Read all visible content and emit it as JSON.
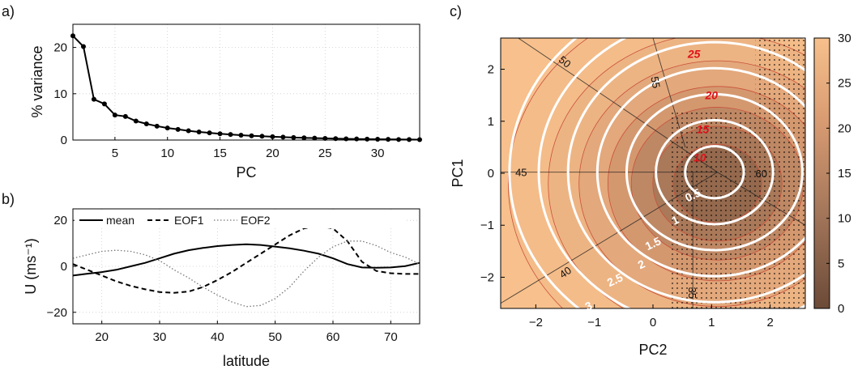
{
  "panel_labels": {
    "a": "a)",
    "b": "b)",
    "c": "c)"
  },
  "chart_data": [
    {
      "type": "line",
      "panel": "a",
      "xlabel": "PC",
      "ylabel": "% variance",
      "xlim": [
        1,
        34
      ],
      "ylim": [
        0,
        25
      ],
      "xticks": [
        5,
        10,
        15,
        20,
        25,
        30
      ],
      "yticks": [
        0,
        10,
        20
      ],
      "grid": true,
      "markers": true,
      "x": [
        1,
        2,
        3,
        4,
        5,
        6,
        7,
        8,
        9,
        10,
        11,
        12,
        13,
        14,
        15,
        16,
        17,
        18,
        19,
        20,
        21,
        22,
        23,
        24,
        25,
        26,
        27,
        28,
        29,
        30,
        31,
        32,
        33,
        34
      ],
      "values": [
        22.5,
        20.2,
        8.8,
        7.8,
        5.4,
        5.1,
        4.1,
        3.5,
        3.0,
        2.6,
        2.3,
        2.0,
        1.75,
        1.55,
        1.35,
        1.2,
        1.05,
        0.92,
        0.82,
        0.72,
        0.63,
        0.55,
        0.48,
        0.42,
        0.36,
        0.31,
        0.27,
        0.23,
        0.2,
        0.17,
        0.15,
        0.12,
        0.1,
        0.08
      ]
    },
    {
      "type": "line",
      "panel": "b",
      "xlabel": "latitude",
      "ylabel": "U (ms⁻¹)",
      "xlim": [
        15,
        75
      ],
      "ylim": [
        -25,
        25
      ],
      "xticks": [
        20,
        30,
        40,
        50,
        60,
        70
      ],
      "yticks": [
        -20,
        0,
        20
      ],
      "grid": true,
      "legend_position": "top",
      "x": [
        15,
        17.5,
        20,
        22.5,
        25,
        27.5,
        30,
        32.5,
        35,
        37.5,
        40,
        42.5,
        45,
        47.5,
        50,
        52.5,
        55,
        57.5,
        60,
        62.5,
        65,
        67.5,
        70,
        72.5,
        75
      ],
      "series": [
        {
          "name": "mean",
          "style": "solid",
          "values": [
            -4,
            -3.2,
            -2.5,
            -1.5,
            0,
            1.5,
            3.5,
            5.5,
            7,
            8,
            8.8,
            9.3,
            9.6,
            9.3,
            8.6,
            7.8,
            6.8,
            5.5,
            3.5,
            1,
            -0.5,
            -0.6,
            -0.5,
            0.1,
            1.5
          ]
        },
        {
          "name": "EOF1",
          "style": "dashed",
          "values": [
            1,
            -1.5,
            -4,
            -6.5,
            -8.5,
            -10,
            -11.2,
            -11.5,
            -11,
            -9,
            -6,
            -2.5,
            1.5,
            5.5,
            9.5,
            13.5,
            16.5,
            17.5,
            16.5,
            11,
            2,
            -2,
            -3,
            -3.3,
            -3.3
          ]
        },
        {
          "name": "EOF2",
          "style": "dotted",
          "values": [
            3.5,
            5,
            6.5,
            7,
            6.5,
            5,
            2.5,
            -1.5,
            -5,
            -9,
            -12.5,
            -15.5,
            -17.5,
            -17,
            -14,
            -9,
            -2,
            4,
            8.5,
            11,
            11,
            9,
            6,
            4,
            1
          ]
        }
      ]
    },
    {
      "type": "heatmap",
      "panel": "c",
      "xlabel": "PC2",
      "ylabel": "PC1",
      "xlim": [
        -2.6,
        2.6
      ],
      "ylim": [
        -2.6,
        2.6
      ],
      "xticks": [
        -2,
        -1,
        0,
        1,
        2
      ],
      "yticks": [
        -2,
        -1,
        0,
        1,
        2
      ],
      "colorbar": {
        "ticks": [
          0,
          5,
          10,
          15,
          20,
          25,
          30
        ],
        "range": [
          0,
          30
        ],
        "color_low": "#6b4a37",
        "color_high": "#f7c08c"
      },
      "field_center": [
        1.1,
        -0.2
      ],
      "filled_levels": [
        {
          "level": 8,
          "radius": 0.72
        },
        {
          "level": 12,
          "radius": 1.05
        },
        {
          "level": 16,
          "radius": 1.4
        },
        {
          "level": 20,
          "radius": 1.78
        },
        {
          "level": 24,
          "radius": 2.25
        },
        {
          "level": 27,
          "radius": 2.75
        },
        {
          "level": 29,
          "radius": 3.4
        }
      ],
      "red_contours": [
        {
          "label": "10",
          "x": 0.8,
          "y": 0.3
        },
        {
          "label": "15",
          "x": 0.85,
          "y": 0.85
        },
        {
          "label": "20",
          "x": 1.0,
          "y": 1.5
        },
        {
          "label": "25",
          "x": 0.7,
          "y": 2.3
        }
      ],
      "white_contours": {
        "center": [
          1.05,
          0.02
        ],
        "levels": [
          0.5,
          1,
          1.5,
          2,
          2.5,
          3,
          3.5
        ],
        "labels": [
          {
            "label": "0.5",
            "x": 0.68,
            "y": -0.42
          },
          {
            "label": "1",
            "x": 0.38,
            "y": -0.9
          },
          {
            "label": "1.5",
            "x": 0.0,
            "y": -1.35
          },
          {
            "label": "2",
            "x": -0.2,
            "y": -1.75
          },
          {
            "label": "2.5",
            "x": -0.65,
            "y": -2.05
          },
          {
            "label": "3",
            "x": -1.1,
            "y": -2.55
          }
        ]
      },
      "thin_lines": [
        {
          "label": "45",
          "line": [
            [
              -2.6,
              0.02
            ],
            [
              1.1,
              0.02
            ]
          ],
          "label_at": [
            -2.25,
            0.02
          ]
        },
        {
          "label": "60",
          "line": [
            [
              1.1,
              0.02
            ],
            [
              2.6,
              -1.0
            ]
          ],
          "label_at": [
            1.85,
            0.0
          ]
        },
        {
          "label": "50",
          "line": [
            [
              -2.3,
              2.6
            ],
            [
              1.1,
              0.02
            ]
          ],
          "label_at": [
            -1.5,
            2.15
          ]
        },
        {
          "label": "55",
          "line": [
            [
              0.0,
              2.6
            ],
            [
              0.55,
              0.5
            ]
          ],
          "label_at": [
            0.05,
            1.75
          ]
        },
        {
          "label": "40",
          "line": [
            [
              -2.6,
              -2.5
            ],
            [
              1.1,
              0.02
            ]
          ],
          "label_at": [
            -1.5,
            -1.9
          ]
        },
        {
          "label": "35",
          "line": [
            [
              0.68,
              0.02
            ],
            [
              0.68,
              -2.6
            ]
          ],
          "label_at": [
            0.68,
            -2.3
          ]
        }
      ],
      "stippled_regions": [
        {
          "x": [
            1.75,
            2.6
          ],
          "y": [
            -2.6,
            2.6
          ]
        },
        {
          "x": [
            0.3,
            1.75
          ],
          "y": [
            -2.6,
            1.2
          ]
        }
      ]
    }
  ]
}
